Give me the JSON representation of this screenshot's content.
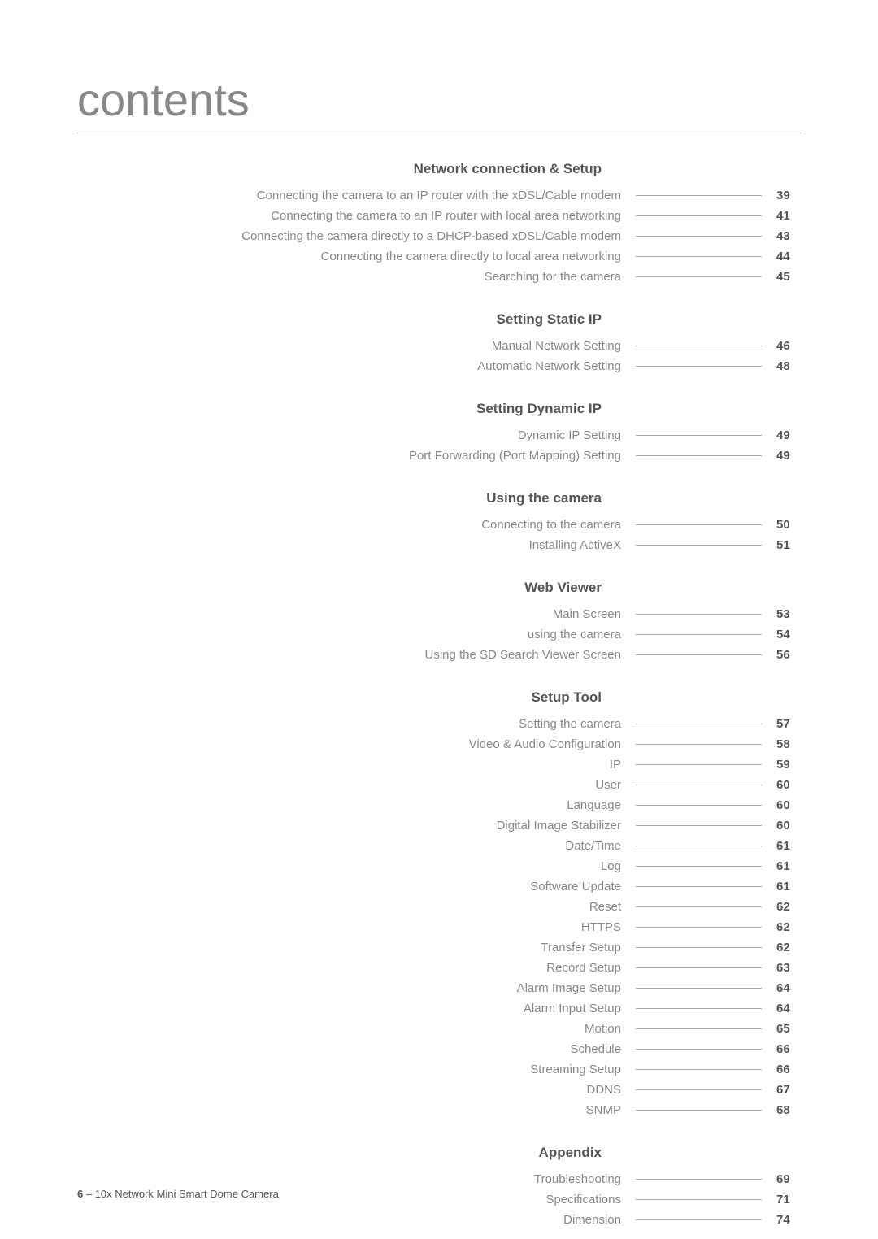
{
  "title": "contents",
  "footer_page": "6",
  "footer_text": " – 10x Network Mini Smart Dome Camera",
  "sections": [
    {
      "heading": "Network connection & Setup",
      "items": [
        {
          "label": "Connecting the camera to an IP router with the xDSL/Cable modem",
          "page": "39"
        },
        {
          "label": "Connecting the camera to an IP router with local area networking",
          "page": "41"
        },
        {
          "label": "Connecting the camera directly to a DHCP-based xDSL/Cable modem",
          "page": "43"
        },
        {
          "label": "Connecting the camera directly to local area networking",
          "page": "44"
        },
        {
          "label": "Searching for the camera",
          "page": "45"
        }
      ]
    },
    {
      "heading": "Setting Static IP",
      "items": [
        {
          "label": "Manual Network Setting",
          "page": "46"
        },
        {
          "label": "Automatic Network Setting",
          "page": "48"
        }
      ]
    },
    {
      "heading": "Setting Dynamic IP",
      "items": [
        {
          "label": "Dynamic IP Setting",
          "page": "49"
        },
        {
          "label": "Port Forwarding (Port Mapping) Setting",
          "page": "49"
        }
      ]
    },
    {
      "heading": "Using the camera",
      "items": [
        {
          "label": "Connecting to the camera",
          "page": "50"
        },
        {
          "label": "Installing ActiveX",
          "page": "51"
        }
      ]
    },
    {
      "heading": "Web Viewer",
      "items": [
        {
          "label": "Main Screen",
          "page": "53"
        },
        {
          "label": "using the camera",
          "page": "54"
        },
        {
          "label": "Using the SD Search Viewer Screen",
          "page": "56"
        }
      ]
    },
    {
      "heading": "Setup Tool",
      "items": [
        {
          "label": "Setting the camera",
          "page": "57"
        },
        {
          "label": "Video & Audio Configuration",
          "page": "58"
        },
        {
          "label": "IP",
          "page": "59"
        },
        {
          "label": "User",
          "page": "60"
        },
        {
          "label": "Language",
          "page": "60"
        },
        {
          "label": "Digital Image Stabilizer",
          "page": "60"
        },
        {
          "label": "Date/Time",
          "page": "61"
        },
        {
          "label": "Log",
          "page": "61"
        },
        {
          "label": "Software Update",
          "page": "61"
        },
        {
          "label": "Reset",
          "page": "62"
        },
        {
          "label": "HTTPS",
          "page": "62"
        },
        {
          "label": "Transfer Setup",
          "page": "62"
        },
        {
          "label": "Record Setup",
          "page": "63"
        },
        {
          "label": "Alarm Image Setup",
          "page": "64"
        },
        {
          "label": "Alarm Input Setup",
          "page": "64"
        },
        {
          "label": "Motion",
          "page": "65"
        },
        {
          "label": "Schedule",
          "page": "66"
        },
        {
          "label": "Streaming Setup",
          "page": "66"
        },
        {
          "label": "DDNS",
          "page": "67"
        },
        {
          "label": "SNMP",
          "page": "68"
        }
      ]
    },
    {
      "heading": "Appendix",
      "items": [
        {
          "label": "Troubleshooting",
          "page": "69"
        },
        {
          "label": "Specifications",
          "page": "71"
        },
        {
          "label": "Dimension",
          "page": "74"
        }
      ]
    }
  ]
}
